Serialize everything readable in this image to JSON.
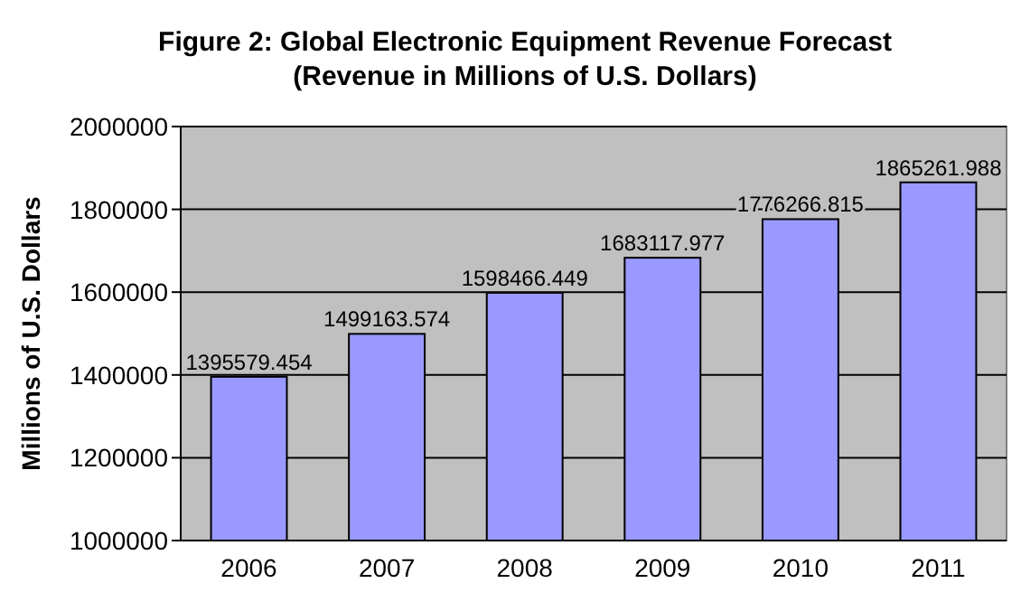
{
  "chart_data": {
    "type": "bar",
    "title": "Figure 2: Global Electronic Equipment Revenue Forecast (Revenue in Millions of U.S. Dollars)",
    "ylabel": "Millions of U.S. Dollars",
    "categories": [
      "2006",
      "2007",
      "2008",
      "2009",
      "2010",
      "2011"
    ],
    "values": [
      1395579.454,
      1499163.574,
      1598466.449,
      1683117.977,
      1776266.815,
      1865261.988
    ],
    "color": "#9999ff",
    "ylim": [
      1000000,
      2000000
    ],
    "yticks": [
      1000000,
      1200000,
      1400000,
      1600000,
      1800000,
      2000000
    ],
    "grid": "y",
    "data_labels": true
  }
}
